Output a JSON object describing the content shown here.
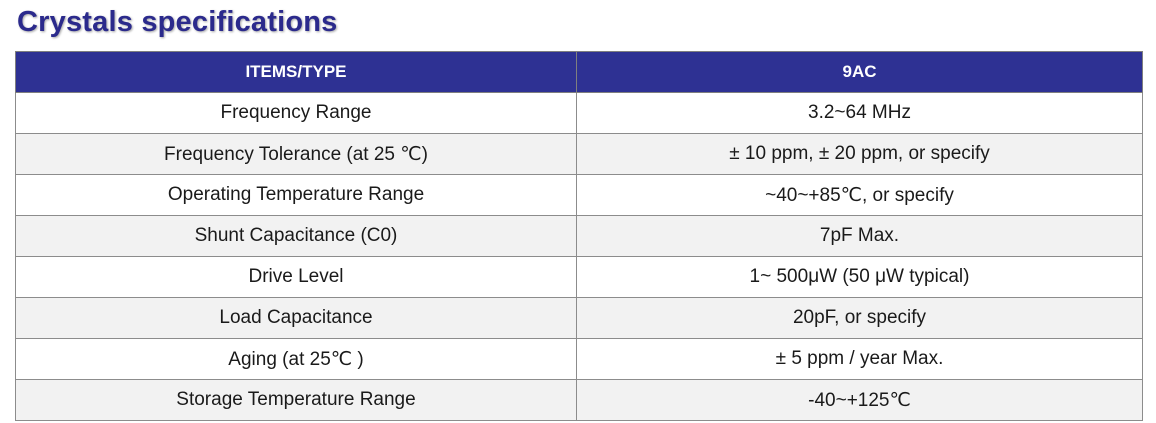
{
  "page": {
    "title": "Crystals specifications"
  },
  "colors": {
    "title": "#2b2a8c",
    "header_bg": "#2e3193",
    "header_text": "#ffffff",
    "row_alt_bg": "#f2f2f2"
  },
  "table": {
    "headers": [
      "ITEMS/TYPE",
      "9AC"
    ],
    "rows": [
      [
        "Frequency Range",
        "3.2~64 MHz"
      ],
      [
        "Frequency Tolerance (at 25 ℃)",
        "± 10 ppm, ± 20 ppm, or specify"
      ],
      [
        "Operating Temperature Range",
        "~40~+85℃, or specify"
      ],
      [
        "Shunt Capacitance (C0)",
        "7pF Max."
      ],
      [
        "Drive Level",
        "1~ 500μW (50 μW typical)"
      ],
      [
        "Load Capacitance",
        "20pF, or specify"
      ],
      [
        "Aging (at 25℃ )",
        "± 5 ppm / year Max."
      ],
      [
        "Storage Temperature Range",
        "-40~+125℃"
      ]
    ]
  }
}
